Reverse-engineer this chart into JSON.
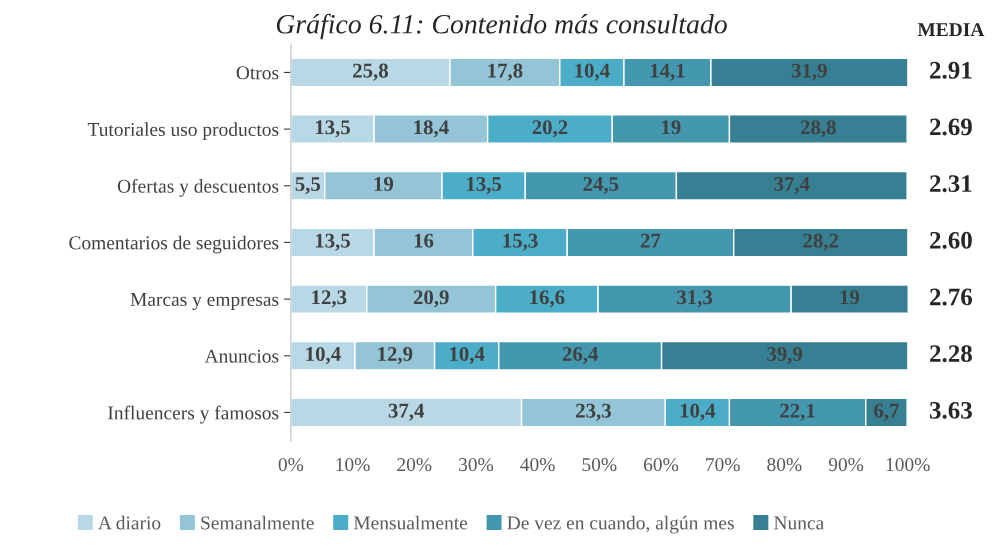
{
  "chart_data": {
    "type": "bar",
    "orientation": "horizontal",
    "stacked": true,
    "title": "Gráfico 6.11: Contenido más consultado",
    "categories": [
      "Otros",
      "Tutoriales uso productos",
      "Ofertas y descuentos",
      "Comentarios de seguidores",
      "Marcas y empresas",
      "Anuncios",
      "Influencers y famosos"
    ],
    "series": [
      {
        "name": "A diario",
        "color": "#b7d8e4",
        "values": [
          25.8,
          13.5,
          5.5,
          13.5,
          12.3,
          10.4,
          37.4
        ],
        "value_labels": [
          "25,8",
          "13,5",
          "5,5",
          "13,5",
          "12,3",
          "10,4",
          "37,4"
        ]
      },
      {
        "name": "Semanalmente",
        "color": "#93c5d6",
        "values": [
          17.8,
          18.4,
          19,
          16,
          20.9,
          12.9,
          23.3
        ],
        "value_labels": [
          "17,8",
          "18,4",
          "19",
          "16",
          "20,9",
          "12,9",
          "23,3"
        ]
      },
      {
        "name": "Mensualmente",
        "color": "#4badc7",
        "values": [
          10.4,
          20.2,
          13.5,
          15.3,
          16.6,
          10.4,
          10.4
        ],
        "value_labels": [
          "10,4",
          "20,2",
          "13,5",
          "15,3",
          "16,6",
          "10,4",
          "10,4"
        ]
      },
      {
        "name": "De vez en cuando, algún mes",
        "color": "#4398b0",
        "values": [
          14.1,
          19,
          24.5,
          27,
          31.3,
          26.4,
          22.1
        ],
        "value_labels": [
          "14,1",
          "19",
          "24,5",
          "27",
          "31,3",
          "26,4",
          "22,1"
        ]
      },
      {
        "name": "Nunca",
        "color": "#377f92",
        "values": [
          31.9,
          28.8,
          37.4,
          28.2,
          19,
          39.9,
          6.7
        ],
        "value_labels": [
          "31,9",
          "28,8",
          "37,4",
          "28,2",
          "19",
          "39,9",
          "6,7"
        ]
      }
    ],
    "xlim": [
      0,
      100
    ],
    "xticks": [
      {
        "value": 0,
        "label": "0%"
      },
      {
        "value": 10,
        "label": "10%"
      },
      {
        "value": 20,
        "label": "20%"
      },
      {
        "value": 30,
        "label": "30%"
      },
      {
        "value": 40,
        "label": "40%"
      },
      {
        "value": 50,
        "label": "50%"
      },
      {
        "value": 60,
        "label": "60%"
      },
      {
        "value": 70,
        "label": "70%"
      },
      {
        "value": 80,
        "label": "80%"
      },
      {
        "value": 90,
        "label": "90%"
      },
      {
        "value": 100,
        "label": "100%"
      }
    ],
    "annotations": [
      "MEDIA",
      "2.91",
      "2.69",
      "2.31",
      "2.60",
      "2.76",
      "2.28",
      "3.63"
    ],
    "legend": "bottom",
    "grid": false
  }
}
